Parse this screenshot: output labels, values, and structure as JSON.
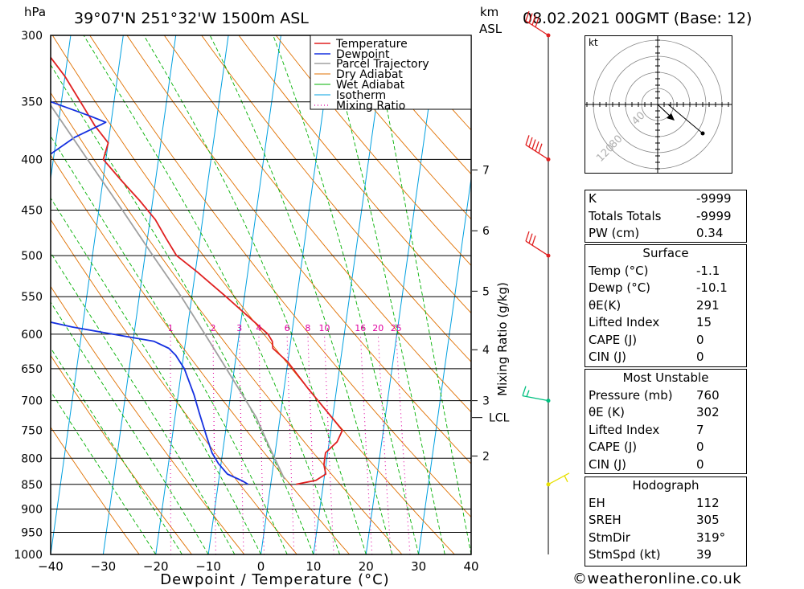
{
  "header": {
    "hpa_unit": "hPa",
    "location": "39°07'N  251°32'W  1500m  ASL",
    "km_unit": "km",
    "asl_label": "ASL",
    "datetime": "08.02.2021  00GMT  (Base: 12)"
  },
  "colors": {
    "temperature": "#e02020",
    "dewpoint": "#1530e0",
    "parcel": "#a0a0a0",
    "dry_adiabat": "#e07000",
    "wet_adiabat": "#00b000",
    "isotherm": "#00a0e0",
    "mixing_ratio": "#e000a0",
    "wind_upper": "#e02020",
    "wind_mid": "#00c080",
    "wind_low": "#e8e000"
  },
  "chart_data": {
    "type": "line",
    "title": "Skew-T log-P sounding",
    "xlabel": "Dewpoint / Temperature (°C)",
    "ylabel": "hPa",
    "x_ticks": [
      -40,
      -30,
      -20,
      -10,
      0,
      10,
      20,
      30,
      40
    ],
    "pressure_levels": [
      300,
      350,
      400,
      450,
      500,
      550,
      600,
      650,
      700,
      750,
      800,
      850,
      900,
      950,
      1000
    ],
    "km_ticks": [
      {
        "label": "7",
        "pressure": 410
      },
      {
        "label": "6",
        "pressure": 472
      },
      {
        "label": "5",
        "pressure": 543
      },
      {
        "label": "4",
        "pressure": 622
      },
      {
        "label": "3",
        "pressure": 700
      },
      {
        "label": "2",
        "pressure": 796
      }
    ],
    "lcl": {
      "label": "LCL",
      "pressure": 728
    },
    "mixing_ratio_axis_label": "Mixing Ratio (g/kg)",
    "mixing_ratios": [
      "1",
      "2",
      "3",
      "4",
      "6",
      "8",
      "10",
      "16",
      "20",
      "25"
    ],
    "legend": [
      "Temperature",
      "Dewpoint",
      "Parcel Trajectory",
      "Dry Adiabat",
      "Wet Adiabat",
      "Isotherm",
      "Mixing Ratio"
    ],
    "series": [
      {
        "name": "Temperature",
        "points": [
          [
            850,
            4.8
          ],
          [
            842,
            8.5
          ],
          [
            830,
            10.2
          ],
          [
            812,
            9.6
          ],
          [
            790,
            9.6
          ],
          [
            770,
            11.5
          ],
          [
            750,
            12.2
          ],
          [
            720,
            9.0
          ],
          [
            680,
            4.5
          ],
          [
            640,
            0.0
          ],
          [
            620,
            -3.2
          ],
          [
            610,
            -3.5
          ],
          [
            600,
            -4.5
          ],
          [
            580,
            -8.0
          ],
          [
            550,
            -13.5
          ],
          [
            520,
            -19.5
          ],
          [
            500,
            -24.0
          ],
          [
            480,
            -26.5
          ],
          [
            460,
            -29.0
          ],
          [
            440,
            -32.5
          ],
          [
            420,
            -36.5
          ],
          [
            400,
            -40.5
          ],
          [
            385,
            -40.0
          ],
          [
            370,
            -43.0
          ],
          [
            355,
            -45.5
          ],
          [
            330,
            -50.0
          ],
          [
            300,
            -57.0
          ]
        ]
      },
      {
        "name": "Dewpoint",
        "points": [
          [
            850,
            -4.3
          ],
          [
            843,
            -5.5
          ],
          [
            830,
            -8.5
          ],
          [
            810,
            -10.5
          ],
          [
            790,
            -12.0
          ],
          [
            760,
            -13.5
          ],
          [
            720,
            -15.5
          ],
          [
            690,
            -17.0
          ],
          [
            650,
            -19.5
          ],
          [
            630,
            -21.5
          ],
          [
            620,
            -23.0
          ],
          [
            610,
            -26.0
          ],
          [
            600,
            -34.0
          ],
          [
            590,
            -42.0
          ],
          [
            580,
            -48.5
          ],
          [
            560,
            -57.0
          ],
          [
            540,
            -63.0
          ],
          [
            520,
            -66.5
          ],
          [
            510,
            -68.0
          ],
          [
            500,
            -60.0
          ],
          [
            490,
            -58.0
          ],
          [
            475,
            -55.0
          ],
          [
            460,
            -58.5
          ],
          [
            440,
            -63.5
          ],
          [
            430,
            -63.0
          ],
          [
            415,
            -58.0
          ],
          [
            400,
            -52.0
          ],
          [
            380,
            -46.5
          ],
          [
            367,
            -41.0
          ],
          [
            362,
            -44.0
          ],
          [
            350,
            -52.0
          ],
          [
            320,
            -56.5
          ],
          [
            300,
            -59.5
          ]
        ]
      },
      {
        "name": "Parcel Trajectory",
        "points": [
          [
            840,
            2.5
          ],
          [
            780,
            -1.2
          ],
          [
            728,
            -4.5
          ],
          [
            650,
            -11.5
          ],
          [
            600,
            -16.5
          ],
          [
            550,
            -22.0
          ],
          [
            500,
            -28.5
          ],
          [
            450,
            -35.5
          ],
          [
            400,
            -43.5
          ],
          [
            350,
            -52.5
          ],
          [
            300,
            -62.0
          ]
        ]
      }
    ],
    "wind_barbs": [
      {
        "pressure": 300,
        "color": "#e02020"
      },
      {
        "pressure": 400,
        "color": "#e02020"
      },
      {
        "pressure": 500,
        "color": "#e02020"
      },
      {
        "pressure": 700,
        "color": "#00c080"
      },
      {
        "pressure": 850,
        "color": "#e8e000"
      }
    ]
  },
  "hodograph": {
    "unit": "kt",
    "ring_labels": [
      "40",
      "80",
      "120"
    ]
  },
  "indices": {
    "k_label": "K",
    "k_value": "-9999",
    "tt_label": "Totals Totals",
    "tt_value": "-9999",
    "pw_label": "PW (cm)",
    "pw_value": "0.34"
  },
  "surface": {
    "title": "Surface",
    "temp_label": "Temp (°C)",
    "temp_value": "-1.1",
    "dewp_label": "Dewp (°C)",
    "dewp_value": "-10.1",
    "theta_label": "θE(K)",
    "theta_value": "291",
    "li_label": "Lifted Index",
    "li_value": "15",
    "cape_label": "CAPE (J)",
    "cape_value": "0",
    "cin_label": "CIN (J)",
    "cin_value": "0"
  },
  "most_unstable": {
    "title": "Most Unstable",
    "pressure_label": "Pressure (mb)",
    "pressure_value": "760",
    "theta_label": "θE (K)",
    "theta_value": "302",
    "li_label": "Lifted Index",
    "li_value": "7",
    "cape_label": "CAPE (J)",
    "cape_value": "0",
    "cin_label": "CIN (J)",
    "cin_value": "0"
  },
  "hodograph_stats": {
    "title": "Hodograph",
    "eh_label": "EH",
    "eh_value": "112",
    "sreh_label": "SREH",
    "sreh_value": "305",
    "stmdir_label": "StmDir",
    "stmdir_value": "319°",
    "stmspd_label": "StmSpd (kt)",
    "stmspd_value": "39"
  },
  "credit": "©weatheronline.co.uk"
}
